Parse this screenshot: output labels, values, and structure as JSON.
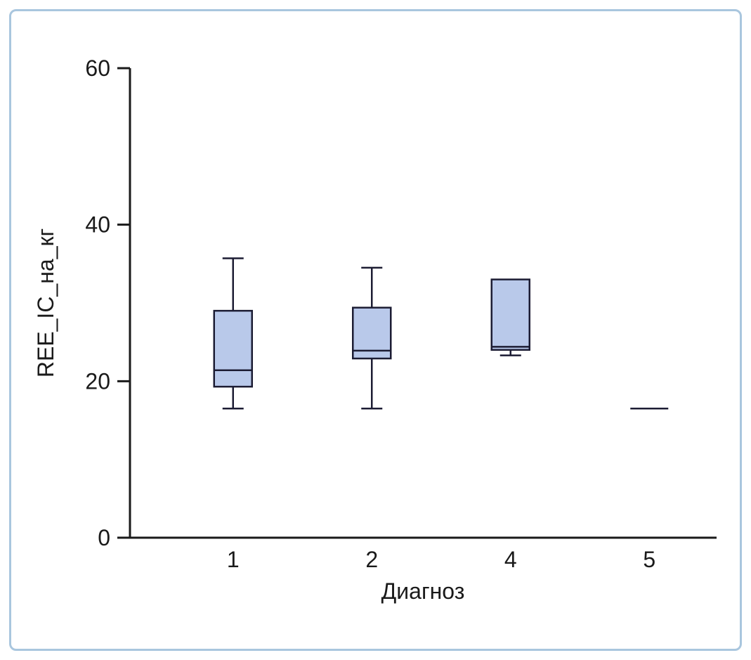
{
  "chart_data": {
    "type": "box",
    "title": "",
    "xlabel": "Диагноз",
    "ylabel": "REE_IC_на_кг",
    "ylim": [
      0,
      60
    ],
    "yticks": [
      0,
      20,
      40,
      60
    ],
    "categories": [
      "1",
      "2",
      "4",
      "5"
    ],
    "boxes": [
      {
        "category": "1",
        "whisker_low": 16.5,
        "q1": 19.3,
        "median": 21.4,
        "q3": 29.0,
        "whisker_high": 35.7
      },
      {
        "category": "2",
        "whisker_low": 16.5,
        "q1": 22.9,
        "median": 23.9,
        "q3": 29.4,
        "whisker_high": 34.5
      },
      {
        "category": "4",
        "whisker_low": 23.3,
        "q1": 24.0,
        "median": 24.4,
        "q3": 33.0,
        "whisker_high": 33.0
      },
      {
        "category": "5",
        "whisker_low": 16.5,
        "q1": 16.5,
        "median": 16.5,
        "q3": 16.5,
        "whisker_high": 16.5
      }
    ],
    "legend": null,
    "grid": false,
    "colors": {
      "box_fill": "#b9c9ea",
      "box_stroke": "#1c1c33",
      "axis": "#1a1a1a",
      "text": "#1a1a1a",
      "frame_border": "#a9c6de",
      "background": "#ffffff"
    }
  }
}
